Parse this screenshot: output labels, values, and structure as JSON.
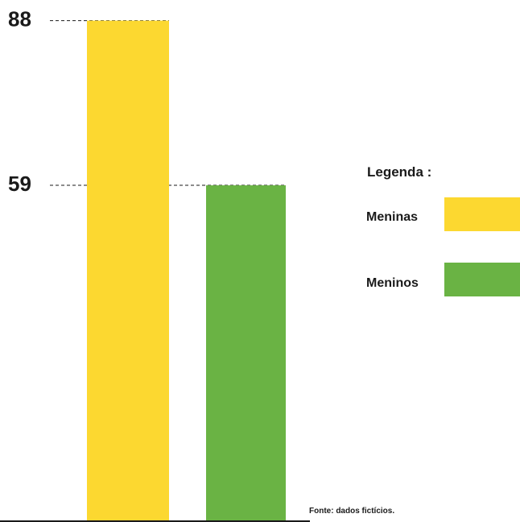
{
  "chart_data": {
    "type": "bar",
    "categories": [
      "Meninas",
      "Meninos"
    ],
    "values": [
      88,
      59
    ],
    "colors": [
      "#FCD830",
      "#6AB344"
    ],
    "tick_labels": [
      "88",
      "59"
    ],
    "grid": false,
    "legend_placement": "right",
    "legend": {
      "title": "Legenda :",
      "items": [
        {
          "label": "Meninas",
          "color": "#FCD830"
        },
        {
          "label": "Meninos",
          "color": "#6AB344"
        }
      ]
    },
    "source": "Fonte: dados fictícios."
  }
}
